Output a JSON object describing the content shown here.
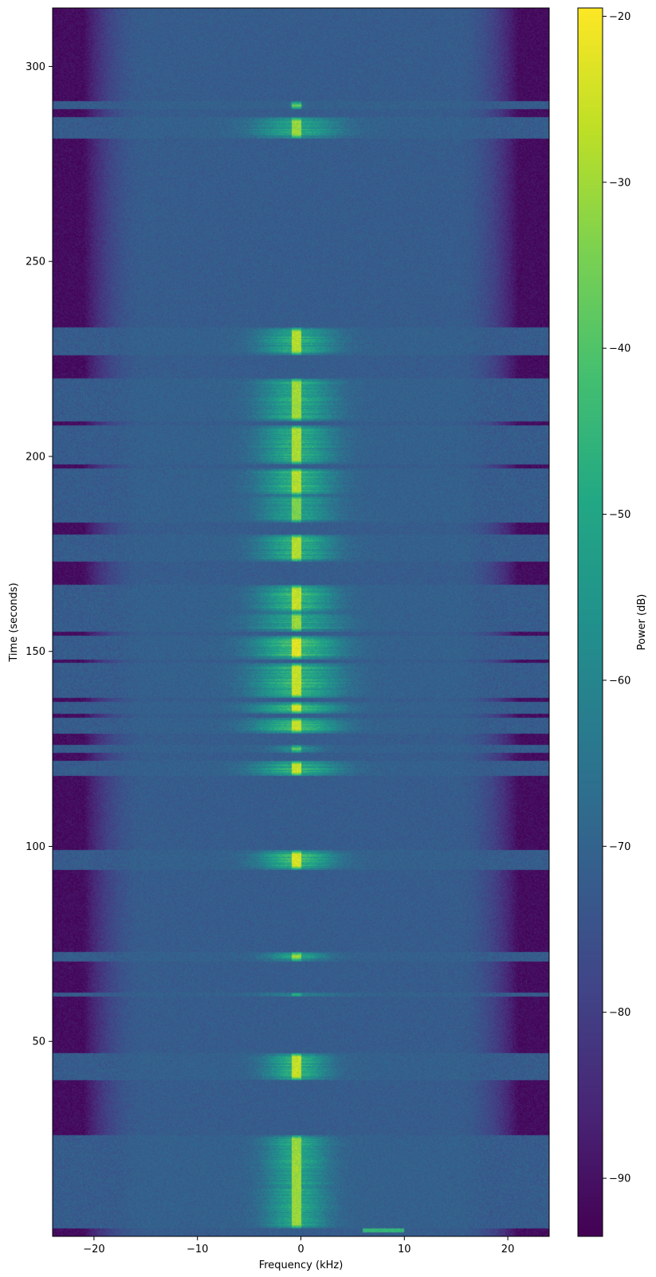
{
  "chart_data": {
    "type": "heatmap",
    "xlabel": "Frequency (kHz)",
    "ylabel": "Time (seconds)",
    "colorbar_label": "Power (dB)",
    "colormap": "viridis",
    "xlim": [
      -24,
      24
    ],
    "ylim": [
      0,
      315
    ],
    "clim": [
      -93.5,
      -19.5
    ],
    "xticks": [
      -20,
      -10,
      0,
      10,
      20
    ],
    "xtick_labels": [
      "−20",
      "−10",
      "0",
      "10",
      "20"
    ],
    "yticks": [
      50,
      100,
      150,
      200,
      250,
      300
    ],
    "ytick_labels": [
      "50",
      "100",
      "150",
      "200",
      "250",
      "300"
    ],
    "cbar_ticks": [
      -90,
      -80,
      -70,
      -60,
      -50,
      -40,
      -30,
      -20
    ],
    "cbar_tick_labels": [
      "−90",
      "−80",
      "−70",
      "−60",
      "−50",
      "−40",
      "−30",
      "−20"
    ],
    "noise_floor_db": -72,
    "band_edge_db": -91,
    "carrier_freq_khz": -0.4,
    "bursts": [
      {
        "t_start": 2,
        "t_end": 26,
        "half_width_khz": 5,
        "peak_db": -45
      },
      {
        "t_start": 40,
        "t_end": 47,
        "half_width_khz": 5,
        "peak_db": -40
      },
      {
        "t_start": 61.5,
        "t_end": 62.5,
        "half_width_khz": 7,
        "peak_db": -48
      },
      {
        "t_start": 70.5,
        "t_end": 73,
        "half_width_khz": 5,
        "peak_db": -45
      },
      {
        "t_start": 94,
        "t_end": 99,
        "half_width_khz": 6,
        "peak_db": -38
      },
      {
        "t_start": 118,
        "t_end": 122,
        "half_width_khz": 7,
        "peak_db": -40
      },
      {
        "t_start": 124,
        "t_end": 126,
        "half_width_khz": 4,
        "peak_db": -50
      },
      {
        "t_start": 129,
        "t_end": 133,
        "half_width_khz": 7,
        "peak_db": -40
      },
      {
        "t_start": 134,
        "t_end": 137,
        "half_width_khz": 7,
        "peak_db": -38
      },
      {
        "t_start": 138,
        "t_end": 147,
        "half_width_khz": 7,
        "peak_db": -40
      },
      {
        "t_start": 148,
        "t_end": 154,
        "half_width_khz": 7,
        "peak_db": -37
      },
      {
        "t_start": 155,
        "t_end": 160,
        "half_width_khz": 7,
        "peak_db": -45
      },
      {
        "t_start": 160,
        "t_end": 167,
        "half_width_khz": 6,
        "peak_db": -40
      },
      {
        "t_start": 173,
        "t_end": 180,
        "half_width_khz": 6,
        "peak_db": -42
      },
      {
        "t_start": 183,
        "t_end": 190,
        "half_width_khz": 6,
        "peak_db": -48
      },
      {
        "t_start": 190,
        "t_end": 197,
        "half_width_khz": 6,
        "peak_db": -42
      },
      {
        "t_start": 198,
        "t_end": 208,
        "half_width_khz": 6,
        "peak_db": -43
      },
      {
        "t_start": 209,
        "t_end": 220,
        "half_width_khz": 6,
        "peak_db": -44
      },
      {
        "t_start": 226,
        "t_end": 233,
        "half_width_khz": 6,
        "peak_db": -42
      },
      {
        "t_start": 281.5,
        "t_end": 287,
        "half_width_khz": 7,
        "peak_db": -45
      },
      {
        "t_start": 289,
        "t_end": 291,
        "half_width_khz": 1,
        "peak_db": -50
      }
    ],
    "chirp": {
      "t_start": 1,
      "t_end": 2,
      "f_start_khz": 6,
      "f_end_khz": 10,
      "peak_db": -45
    }
  }
}
